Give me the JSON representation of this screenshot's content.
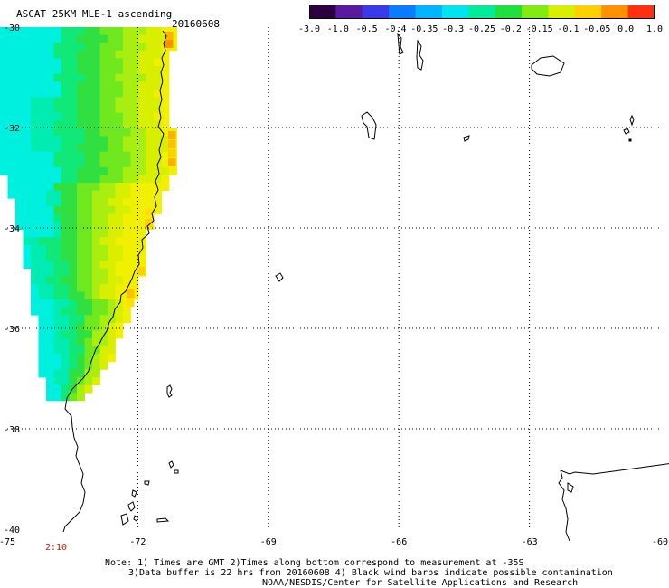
{
  "header": {
    "title": "ASCAT 25KM MLE-1 ascending",
    "date": "20160608"
  },
  "colorbar": {
    "labels": [
      "-3.0",
      "-1.0",
      "-0.5",
      "-0.4",
      "-0.35",
      "-0.3",
      "-0.25",
      "-0.2",
      "-0.15",
      "-0.1",
      "-0.05",
      "0.0",
      "1.0"
    ],
    "colors": [
      "#2a0040",
      "#5a1aa0",
      "#3a3ae8",
      "#0a7cff",
      "#00b4ff",
      "#00e4f0",
      "#00ec9c",
      "#20e040",
      "#80ec10",
      "#d8f000",
      "#ffd000",
      "#ff9000",
      "#ff3010"
    ]
  },
  "map": {
    "lat_labels": [
      "-30",
      "-32",
      "-34",
      "-36",
      "-38",
      "-40"
    ],
    "lon_labels": [
      "-75",
      "-72",
      "-69",
      "-66",
      "-63",
      "-60"
    ],
    "time_label": "2:10",
    "grid_color": "#000000"
  },
  "notes": {
    "line1": "Note: 1) Times are GMT 2)Times along bottom correspond to measurement at -35S",
    "line2": "3)Data buffer is 22 hrs from 20160608 4) Black wind barbs indicate possible contamination",
    "line3": "NOAA/NESDIS/Center for Satellite Applications and Research"
  }
}
